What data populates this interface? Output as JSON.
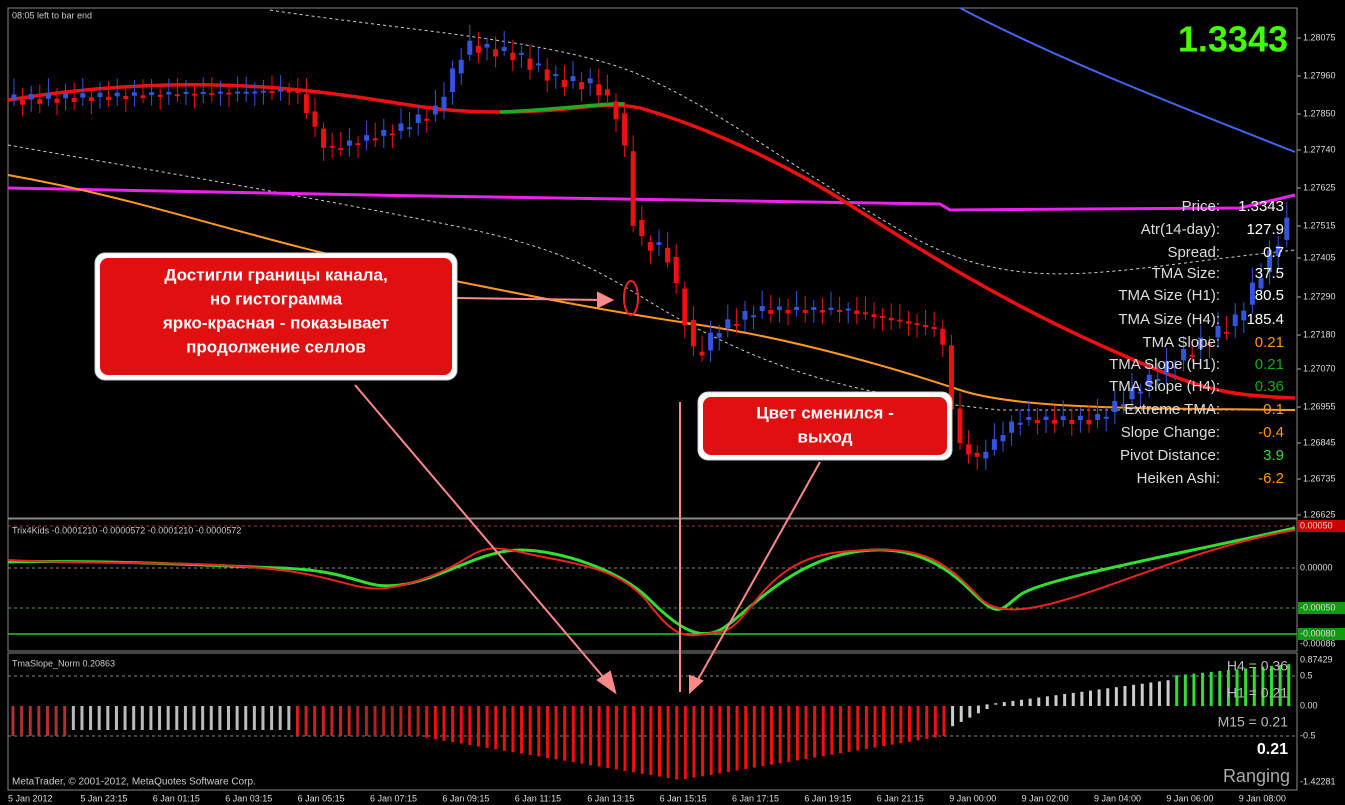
{
  "header": {
    "timer": "08:05 left to bar end",
    "price": "1.3343"
  },
  "price_axis": [
    "1.28075",
    "1.27960",
    "1.27850",
    "1.27740",
    "1.27625",
    "1.27515",
    "1.27405",
    "1.27290",
    "1.27180",
    "1.27070",
    "1.26955",
    "1.26845",
    "1.26735",
    "1.26625"
  ],
  "info_panel": {
    "rows": [
      {
        "label": "Price:",
        "value": "1.3343",
        "color": "#ffffff"
      },
      {
        "label": "Atr(14-day):",
        "value": "127.9",
        "color": "#ffffff"
      },
      {
        "label": "Spread:",
        "value": "0.7",
        "color": "#ffffff"
      },
      {
        "label": "TMA Size:",
        "value": "37.5",
        "color": "#ffffff"
      },
      {
        "label": "TMA Size (H1):",
        "value": "80.5",
        "color": "#ffffff"
      },
      {
        "label": "TMA Size (H4):",
        "value": "185.4",
        "color": "#ffffff"
      },
      {
        "label": "TMA Slope:",
        "value": "0.21",
        "color": "#ff9900"
      },
      {
        "label": "TMA Slope (H1):",
        "value": "0.21",
        "color": "#11aa11"
      },
      {
        "label": "TMA Slope (H4):",
        "value": "0.36",
        "color": "#11aa11"
      },
      {
        "label": "Extreme TMA:",
        "value": "-0.1",
        "color": "#ff9900"
      },
      {
        "label": "Slope Change:",
        "value": "-0.4",
        "color": "#ff9900"
      },
      {
        "label": "Pivot Distance:",
        "value": "3.9",
        "color": "#33dd33"
      },
      {
        "label": "Heiken Ashi:",
        "value": "-6.2",
        "color": "#ff9900"
      }
    ]
  },
  "annotations": [
    {
      "lines": [
        "Достигли границы канала,",
        "но гистограмма",
        "ярко-красная - показывает",
        "продолжение селлов"
      ]
    },
    {
      "lines": [
        "Цвет сменился -",
        "выход"
      ]
    }
  ],
  "indicators": [
    {
      "title": "Trix4Kids -0.0001210 -0.0000572 -0.0001210 -0.0000572",
      "axis": [
        "0.00050",
        "0.00000",
        "-0.00050",
        "-0.00080",
        "-0.00086"
      ]
    },
    {
      "title": "TmaSlope_Norm 0.20863",
      "axis": [
        "0.87429",
        "0.5",
        "0.00",
        "-0.5",
        "-1.42281"
      ]
    }
  ],
  "slope_readout": {
    "h4": "H4 = 0.36",
    "h1": "H1 = 0.21",
    "m15": "M15 = 0.21",
    "value": "0.21",
    "state": "Ranging"
  },
  "time_axis": [
    "5 Jan 2012",
    "5 Jan 23:15",
    "6 Jan 01:15",
    "6 Jan 03:15",
    "6 Jan 05:15",
    "6 Jan 07:15",
    "6 Jan 09:15",
    "6 Jan 11:15",
    "6 Jan 13:15",
    "6 Jan 15:15",
    "6 Jan 17:15",
    "6 Jan 19:15",
    "6 Jan 21:15",
    "9 Jan 00:00",
    "9 Jan 02:00",
    "9 Jan 04:00",
    "9 Jan 06:00",
    "9 Jan 08:00"
  ],
  "copyright": "MetaTrader, © 2001-2012, MetaQuotes Software Corp."
}
